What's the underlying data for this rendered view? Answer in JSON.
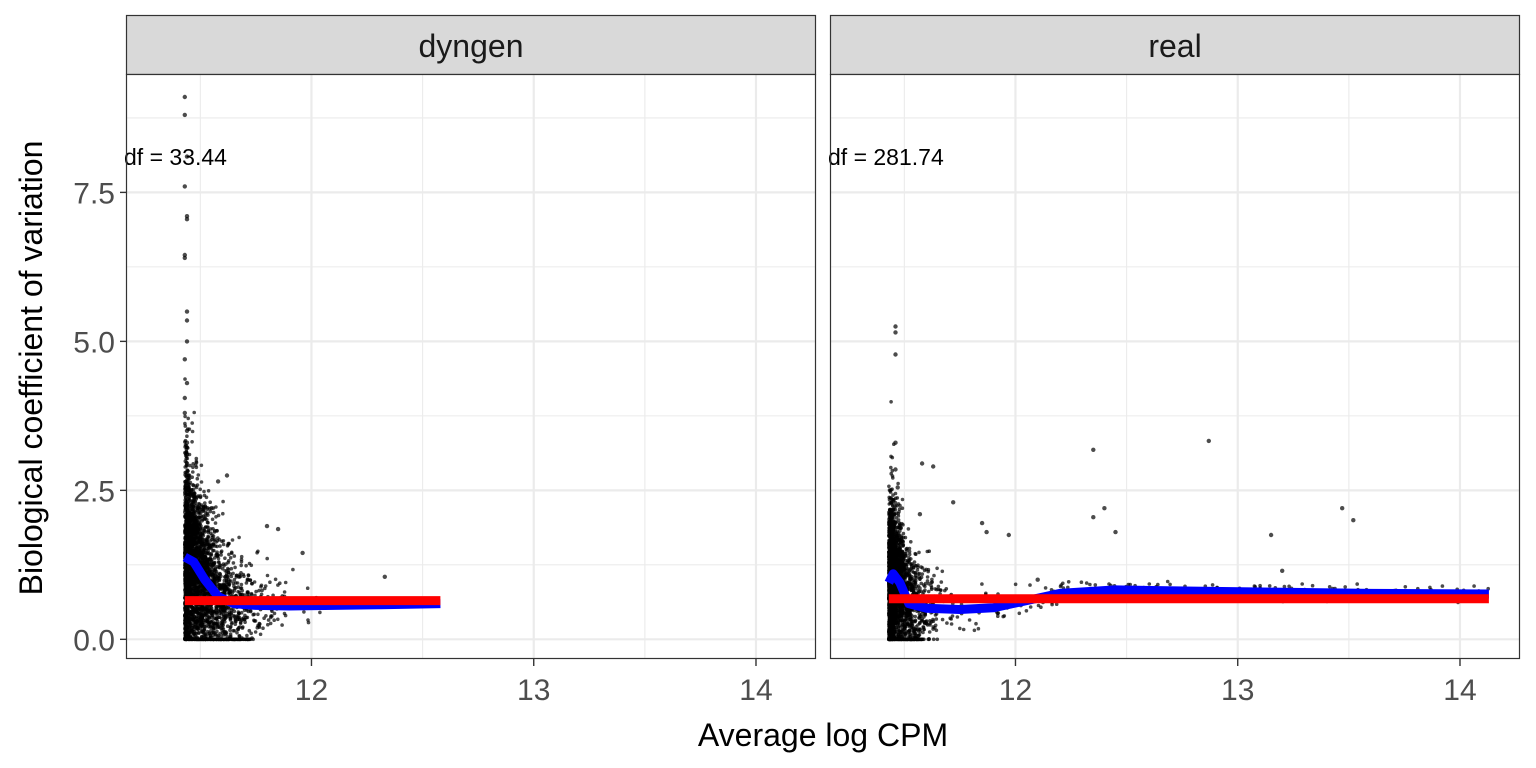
{
  "chart_data": {
    "type": "scatter",
    "title": "",
    "xlabel": "Average log CPM",
    "ylabel": "Biological coefficient of variation",
    "xlim": [
      11.17,
      14.27
    ],
    "ylim": [
      -0.33,
      9.47
    ],
    "x_ticks": [
      12,
      13,
      14
    ],
    "y_ticks": [
      0.0,
      2.5,
      5.0,
      7.5
    ],
    "x_tick_labels": [
      "12",
      "13",
      "14"
    ],
    "y_tick_labels": [
      "0.0",
      "2.5",
      "5.0",
      "7.5"
    ],
    "grid": true,
    "legend": "none",
    "colors": {
      "points": "#000000",
      "trend": "#0000ff",
      "common": "#ff0000",
      "strip_fill": "#d9d9d9",
      "grid": "#ebebeb",
      "panel_border": "#333333"
    },
    "panels": [
      {
        "name": "dyngen",
        "annotation": "df = 33.44",
        "annotation_pos": [
          11.17,
          8.1
        ],
        "common_dispersion": 0.65,
        "common_x": [
          11.43,
          12.58
        ],
        "trend": {
          "x": [
            11.43,
            11.47,
            11.52,
            11.58,
            11.65,
            11.75,
            11.9,
            12.1,
            12.3,
            12.58
          ],
          "y": [
            1.38,
            1.3,
            1.0,
            0.72,
            0.6,
            0.57,
            0.56,
            0.57,
            0.58,
            0.6
          ]
        },
        "outliers": [
          [
            11.43,
            9.1
          ],
          [
            11.43,
            8.8
          ],
          [
            11.44,
            8.1
          ],
          [
            11.43,
            7.6
          ],
          [
            11.44,
            7.1
          ],
          [
            11.44,
            7.05
          ],
          [
            11.43,
            6.45
          ],
          [
            11.43,
            6.4
          ],
          [
            11.44,
            5.5
          ],
          [
            11.44,
            5.35
          ],
          [
            11.44,
            5.0
          ],
          [
            11.43,
            4.7
          ],
          [
            11.44,
            4.3
          ],
          [
            11.43,
            4.05
          ],
          [
            11.43,
            3.8
          ],
          [
            11.44,
            3.5
          ],
          [
            11.44,
            3.3
          ],
          [
            11.44,
            3.1
          ],
          [
            11.44,
            2.95
          ],
          [
            11.45,
            2.75
          ],
          [
            11.62,
            2.75
          ],
          [
            11.58,
            2.65
          ],
          [
            11.8,
            1.9
          ],
          [
            11.85,
            1.85
          ],
          [
            11.96,
            1.45
          ],
          [
            12.33,
            1.05
          ],
          [
            11.55,
            2.2
          ],
          [
            11.5,
            2.4
          ]
        ],
        "cloud": {
          "x_min": 11.43,
          "x_max": 12.58,
          "n": 2600
        }
      },
      {
        "name": "real",
        "annotation": "df = 281.74",
        "annotation_pos": [
          11.17,
          8.1
        ],
        "common_dispersion": 0.68,
        "common_x": [
          11.43,
          14.13
        ],
        "trend": {
          "x": [
            11.43,
            11.45,
            11.48,
            11.52,
            11.6,
            11.75,
            11.9,
            12.05,
            12.2,
            12.45,
            12.8,
            13.2,
            13.6,
            14.13
          ],
          "y": [
            0.95,
            1.1,
            0.95,
            0.6,
            0.52,
            0.5,
            0.53,
            0.65,
            0.77,
            0.83,
            0.81,
            0.79,
            0.77,
            0.76
          ]
        },
        "outliers": [
          [
            11.46,
            5.25
          ],
          [
            11.46,
            5.15
          ],
          [
            11.46,
            4.78
          ],
          [
            11.46,
            3.3
          ],
          [
            11.46,
            2.85
          ],
          [
            11.47,
            2.55
          ],
          [
            11.58,
            2.95
          ],
          [
            11.63,
            2.9
          ],
          [
            11.72,
            2.3
          ],
          [
            11.57,
            2.1
          ],
          [
            11.85,
            1.95
          ],
          [
            11.87,
            1.8
          ],
          [
            11.97,
            1.75
          ],
          [
            12.35,
            3.18
          ],
          [
            12.4,
            2.2
          ],
          [
            12.35,
            2.05
          ],
          [
            12.45,
            1.8
          ],
          [
            12.87,
            3.33
          ],
          [
            13.15,
            1.75
          ],
          [
            13.2,
            1.15
          ],
          [
            13.47,
            2.2
          ],
          [
            13.52,
            2.0
          ],
          [
            13.3,
            0.8
          ],
          [
            13.9,
            0.75
          ],
          [
            12.1,
            1.0
          ],
          [
            12.2,
            0.8
          ]
        ],
        "cloud": {
          "x_min": 11.43,
          "x_max": 14.13,
          "n": 2400
        }
      }
    ]
  }
}
